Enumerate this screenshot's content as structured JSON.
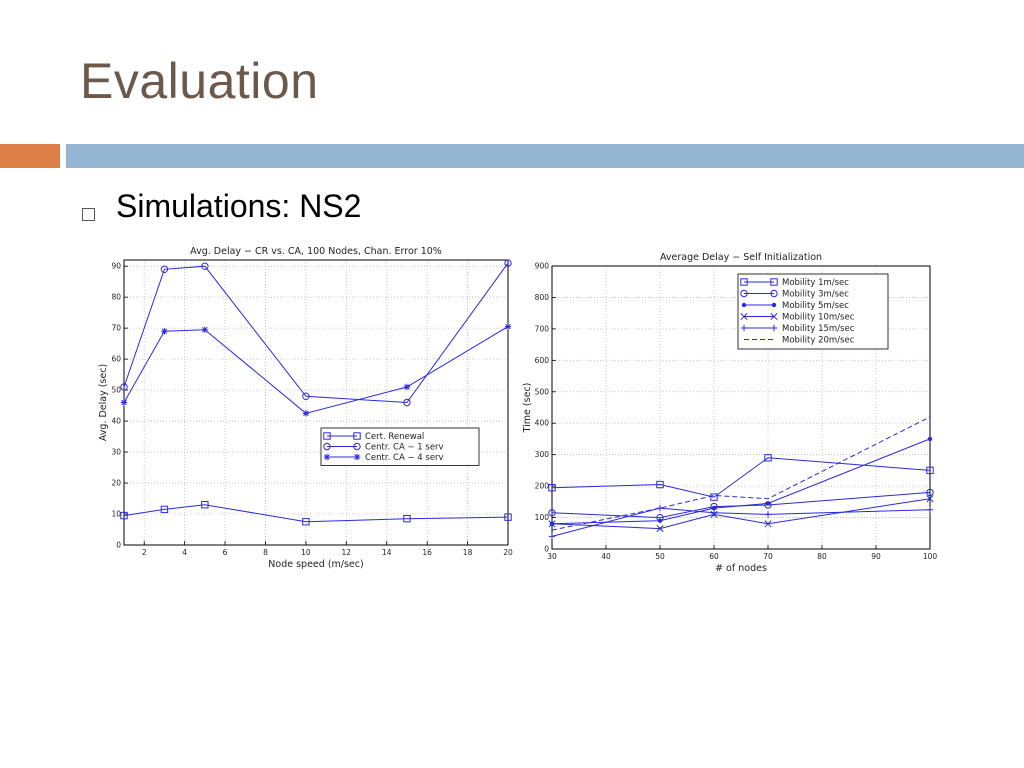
{
  "slide": {
    "title": "Evaluation",
    "bullet": "Simulations: NS2"
  },
  "colors": {
    "line": "#2a2ad8",
    "grid": "#bbbbbb",
    "accent_orange": "#dd8047",
    "accent_blue": "#94b6d2"
  },
  "chart_data": [
    {
      "type": "line",
      "title": "Avg. Delay − CR vs. CA, 100 Nodes, Chan. Error 10%",
      "xlabel": "Node speed (m/sec)",
      "ylabel": "Avg. Delay (sec)",
      "xlim": [
        1,
        20
      ],
      "ylim": [
        0,
        92
      ],
      "xticks": [
        2,
        4,
        6,
        8,
        10,
        12,
        14,
        16,
        18,
        20
      ],
      "yticks": [
        0,
        10,
        20,
        30,
        40,
        50,
        60,
        70,
        80,
        90
      ],
      "grid": true,
      "legend_position": "center-right",
      "series": [
        {
          "name": "Cert. Renewal",
          "marker": "square",
          "x": [
            1,
            3,
            5,
            10,
            15,
            20
          ],
          "y": [
            9.5,
            11.5,
            13,
            7.5,
            8.5,
            9
          ]
        },
        {
          "name": "Centr. CA − 1 serv",
          "marker": "circle",
          "x": [
            1,
            3,
            5,
            10,
            15,
            20
          ],
          "y": [
            51,
            89,
            90,
            48,
            46,
            91
          ]
        },
        {
          "name": "Centr. CA − 4 serv",
          "marker": "star",
          "x": [
            1,
            3,
            5,
            10,
            15,
            20
          ],
          "y": [
            46,
            69,
            69.5,
            42.5,
            51,
            70.5
          ]
        }
      ]
    },
    {
      "type": "line",
      "title": "Average Delay − Self Initialization",
      "xlabel": "# of nodes",
      "ylabel": "Time (sec)",
      "xlim": [
        30,
        100
      ],
      "ylim": [
        0,
        900
      ],
      "xticks": [
        30,
        40,
        50,
        60,
        70,
        80,
        90,
        100
      ],
      "yticks": [
        0,
        100,
        200,
        300,
        400,
        500,
        600,
        700,
        800,
        900
      ],
      "grid": true,
      "legend_position": "top-right",
      "series": [
        {
          "name": "Mobility 1m/sec",
          "marker": "square",
          "x": [
            30,
            50,
            60,
            70,
            100
          ],
          "y": [
            195,
            205,
            165,
            290,
            250
          ]
        },
        {
          "name": "Mobility 3m/sec",
          "marker": "circle",
          "x": [
            30,
            50,
            60,
            70,
            100
          ],
          "y": [
            115,
            100,
            135,
            140,
            180
          ]
        },
        {
          "name": "Mobility 5m/sec",
          "marker": "dot",
          "x": [
            30,
            50,
            60,
            70,
            100
          ],
          "y": [
            80,
            90,
            130,
            145,
            350
          ]
        },
        {
          "name": "Mobility 10m/sec",
          "marker": "x",
          "x": [
            30,
            50,
            60,
            70,
            100
          ],
          "y": [
            80,
            65,
            110,
            80,
            160
          ]
        },
        {
          "name": "Mobility 15m/sec",
          "marker": "plus",
          "x": [
            30,
            50,
            60,
            70,
            100
          ],
          "y": [
            40,
            130,
            115,
            110,
            125
          ]
        },
        {
          "name": "Mobility 20m/sec",
          "marker": "none",
          "dash": true,
          "x": [
            30,
            50,
            60,
            70,
            100
          ],
          "y": [
            60,
            130,
            170,
            160,
            420
          ]
        }
      ]
    }
  ]
}
